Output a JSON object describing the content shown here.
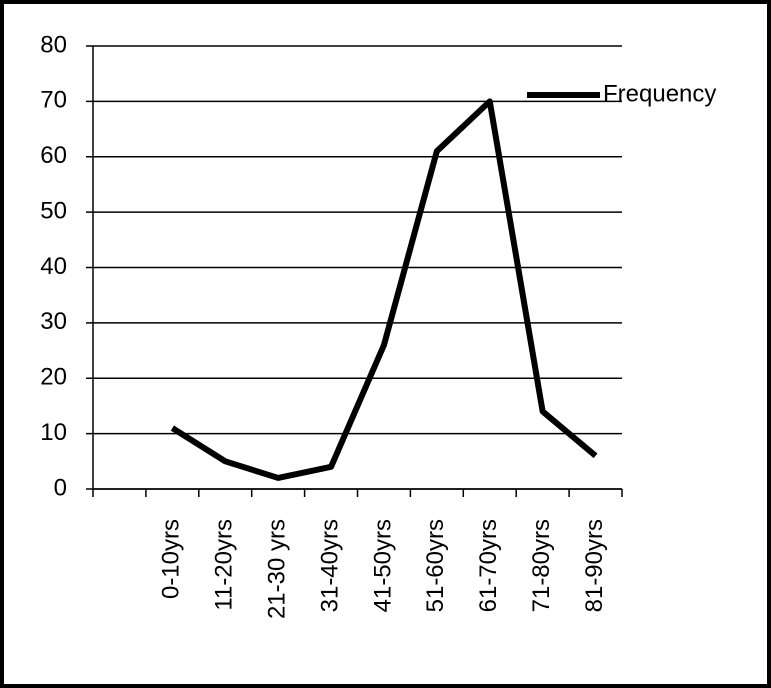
{
  "chart_data": {
    "type": "line",
    "categories": [
      null,
      "0-10yrs",
      "11-20yrs",
      "21-30 yrs",
      "31-40yrs",
      "41-50yrs",
      "51-60yrs",
      "61-70yrs",
      "71-80yrs",
      "81-90yrs"
    ],
    "series": [
      {
        "name": "Frequency",
        "color": "#000000",
        "values": [
          null,
          11,
          5,
          2,
          4,
          26,
          61,
          70,
          14,
          6
        ]
      }
    ],
    "ylim": [
      0,
      80
    ],
    "yticks": [
      0,
      10,
      20,
      30,
      40,
      50,
      60,
      70,
      80
    ],
    "grid": true,
    "legend": "right"
  }
}
